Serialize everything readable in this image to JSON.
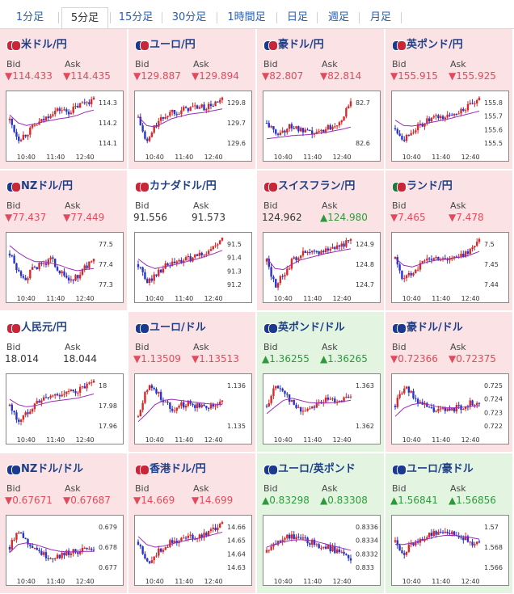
{
  "tabs": [
    {
      "label": "1分足",
      "active": false
    },
    {
      "label": "5分足",
      "active": true
    },
    {
      "label": "15分足",
      "active": false
    },
    {
      "label": "30分足",
      "active": false
    },
    {
      "label": "1時間足",
      "active": false
    },
    {
      "label": "日足",
      "active": false
    },
    {
      "label": "週足",
      "active": false
    },
    {
      "label": "月足",
      "active": false
    }
  ],
  "labels": {
    "bid": "Bid",
    "ask": "Ask"
  },
  "colors": {
    "down_bg": "#fbe3e5",
    "up_bg": "#e3f5e1",
    "down_text": "#e24a5c",
    "up_text": "#2c9a3c",
    "candle_up": "#d62a2a",
    "candle_down": "#2a34c8",
    "ma": "#9b2ab4"
  },
  "pairs": [
    {
      "name": "米ドル/円",
      "state": "down",
      "bid": "▼114.433",
      "ask": "▼114.435",
      "flags": [
        "#c9263a",
        "#c9263a"
      ],
      "yticks": [
        "114.3",
        "114.2",
        "114.1"
      ],
      "xticks": [
        "10:40",
        "11:40",
        "12:40"
      ],
      "shape": [
        0.55,
        0.2,
        0.3,
        0.45,
        0.55,
        0.7,
        0.75,
        0.7,
        0.8,
        0.9,
        0.92
      ],
      "ma": [
        0.65,
        0.5,
        0.45,
        0.48,
        0.52,
        0.55,
        0.58,
        0.6,
        0.64,
        0.7,
        0.74
      ]
    },
    {
      "name": "ユーロ/円",
      "state": "down",
      "bid": "▼129.887",
      "ask": "▼129.894",
      "flags": [
        "#1b3a8f",
        "#c9263a"
      ],
      "yticks": [
        "129.8",
        "129.7",
        "129.6"
      ],
      "xticks": [
        "10:40",
        "11:40",
        "12:40"
      ],
      "shape": [
        0.6,
        0.1,
        0.45,
        0.6,
        0.72,
        0.72,
        0.78,
        0.8,
        0.78,
        0.85,
        0.92
      ],
      "ma": [
        0.62,
        0.45,
        0.42,
        0.5,
        0.58,
        0.62,
        0.66,
        0.68,
        0.7,
        0.73,
        0.76
      ]
    },
    {
      "name": "豪ドル/円",
      "state": "down",
      "bid": "▼82.807",
      "ask": "▼82.814",
      "flags": [
        "#1b3a8f",
        "#c9263a"
      ],
      "yticks": [
        "82.7",
        "82.6"
      ],
      "xticks": [
        "10:40",
        "11:40",
        "12:40"
      ],
      "shape": [
        0.5,
        0.3,
        0.35,
        0.45,
        0.35,
        0.3,
        0.3,
        0.4,
        0.45,
        0.6,
        0.85
      ],
      "ma": [
        0.2,
        0.22,
        0.24,
        0.26,
        0.27,
        0.28,
        0.3,
        0.32,
        0.35,
        0.38,
        0.42
      ]
    },
    {
      "name": "英ポンド/円",
      "state": "down",
      "bid": "▼155.915",
      "ask": "▼155.925",
      "flags": [
        "#1b3a8f",
        "#c9263a"
      ],
      "yticks": [
        "155.8",
        "155.7",
        "155.6",
        "155.5"
      ],
      "xticks": [
        "10:40",
        "11:40",
        "12:40"
      ],
      "shape": [
        0.4,
        0.2,
        0.35,
        0.45,
        0.55,
        0.6,
        0.6,
        0.68,
        0.75,
        0.82,
        0.92
      ],
      "ma": [
        0.55,
        0.45,
        0.44,
        0.46,
        0.5,
        0.53,
        0.56,
        0.6,
        0.64,
        0.68,
        0.72
      ]
    },
    {
      "name": "NZドル/円",
      "state": "down",
      "bid": "▼77.437",
      "ask": "▼77.449",
      "flags": [
        "#1b3a8f",
        "#c9263a"
      ],
      "yticks": [
        "77.5",
        "77.4",
        "77.3"
      ],
      "xticks": [
        "10:40",
        "11:40",
        "12:40"
      ],
      "shape": [
        0.7,
        0.35,
        0.25,
        0.45,
        0.5,
        0.6,
        0.35,
        0.2,
        0.25,
        0.45,
        0.55
      ],
      "ma": [
        0.85,
        0.72,
        0.62,
        0.55,
        0.55,
        0.52,
        0.48,
        0.42,
        0.38,
        0.4,
        0.42
      ]
    },
    {
      "name": "カナダドル/円",
      "state": "flat",
      "bid": "91.556",
      "ask": "91.573",
      "flags": [
        "#c9263a",
        "#c9263a"
      ],
      "yticks": [
        "91.5",
        "91.4",
        "91.3",
        "91.2"
      ],
      "xticks": [
        "10:40",
        "11:40",
        "12:40"
      ],
      "shape": [
        0.5,
        0.15,
        0.3,
        0.45,
        0.5,
        0.55,
        0.6,
        0.65,
        0.72,
        0.82,
        0.95
      ],
      "ma": [
        0.6,
        0.48,
        0.42,
        0.45,
        0.48,
        0.52,
        0.56,
        0.6,
        0.65,
        0.7,
        0.76
      ]
    },
    {
      "name": "スイスフラン/円",
      "state": "down",
      "bid": "124.962",
      "ask": "▲124.980",
      "flags": [
        "#c9263a",
        "#c9263a"
      ],
      "yticks": [
        "124.9",
        "124.8",
        "124.7"
      ],
      "xticks": [
        "10:40",
        "11:40",
        "12:40"
      ],
      "shape": [
        0.55,
        0.1,
        0.3,
        0.55,
        0.7,
        0.7,
        0.72,
        0.78,
        0.82,
        0.88,
        0.92
      ],
      "ma": [
        0.62,
        0.42,
        0.4,
        0.5,
        0.58,
        0.62,
        0.66,
        0.7,
        0.73,
        0.76,
        0.79
      ]
    },
    {
      "name": "ランド/円",
      "state": "down",
      "bid": "▼7.465",
      "ask": "▼7.478",
      "flags": [
        "#1e7a3a",
        "#c9263a"
      ],
      "yticks": [
        "7.5",
        "7.45",
        "7.44"
      ],
      "xticks": [
        "10:40",
        "11:40",
        "12:40"
      ],
      "shape": [
        0.6,
        0.2,
        0.35,
        0.5,
        0.6,
        0.62,
        0.6,
        0.62,
        0.66,
        0.8,
        0.92
      ],
      "ma": [
        0.62,
        0.48,
        0.45,
        0.5,
        0.55,
        0.58,
        0.6,
        0.62,
        0.64,
        0.68,
        0.74
      ]
    },
    {
      "name": "人民元/円",
      "state": "flat",
      "bid": "18.014",
      "ask": "18.044",
      "flags": [
        "#c9263a",
        "#c9263a"
      ],
      "yticks": [
        "18",
        "17.98",
        "17.96"
      ],
      "xticks": [
        "10:40",
        "11:40",
        "12:40"
      ],
      "shape": [
        0.5,
        0.2,
        0.35,
        0.55,
        0.62,
        0.68,
        0.72,
        0.74,
        0.78,
        0.85,
        0.92
      ],
      "ma": [
        0.62,
        0.52,
        0.48,
        0.5,
        0.54,
        0.58,
        0.6,
        0.62,
        0.64,
        0.68,
        0.72
      ]
    },
    {
      "name": "ユーロ/ドル",
      "state": "down",
      "bid": "▼1.13509",
      "ask": "▼1.13513",
      "flags": [
        "#1b3a8f",
        "#1b3a8f"
      ],
      "yticks": [
        "1.136",
        "1.135"
      ],
      "xticks": [
        "10:40",
        "11:40",
        "12:40"
      ],
      "shape": [
        0.3,
        0.85,
        0.8,
        0.6,
        0.45,
        0.5,
        0.55,
        0.5,
        0.5,
        0.52,
        0.55
      ],
      "ma": [
        0.2,
        0.35,
        0.52,
        0.6,
        0.62,
        0.6,
        0.58,
        0.56,
        0.54,
        0.53,
        0.52
      ]
    },
    {
      "name": "英ポンド/ドル",
      "state": "up",
      "bid": "▲1.36255",
      "ask": "▲1.36265",
      "flags": [
        "#1b3a8f",
        "#1b3a8f"
      ],
      "yticks": [
        "1.363",
        "1.362"
      ],
      "xticks": [
        "10:40",
        "11:40",
        "12:40"
      ],
      "shape": [
        0.5,
        0.85,
        0.8,
        0.55,
        0.4,
        0.45,
        0.55,
        0.6,
        0.6,
        0.62,
        0.62
      ],
      "ma": [
        0.35,
        0.48,
        0.6,
        0.64,
        0.6,
        0.56,
        0.55,
        0.55,
        0.56,
        0.58,
        0.6
      ]
    },
    {
      "name": "豪ドル/ドル",
      "state": "down",
      "bid": "▼0.72366",
      "ask": "▼0.72375",
      "flags": [
        "#1b3a8f",
        "#1b3a8f"
      ],
      "yticks": [
        "0.725",
        "0.724",
        "0.723",
        "0.722"
      ],
      "xticks": [
        "10:40",
        "11:40",
        "12:40"
      ],
      "shape": [
        0.5,
        0.85,
        0.7,
        0.55,
        0.45,
        0.4,
        0.42,
        0.45,
        0.48,
        0.55,
        0.5
      ],
      "ma": [
        0.3,
        0.45,
        0.52,
        0.55,
        0.52,
        0.48,
        0.46,
        0.46,
        0.47,
        0.49,
        0.5
      ]
    },
    {
      "name": "NZドル/ドル",
      "state": "down",
      "bid": "▼0.67671",
      "ask": "▼0.67687",
      "flags": [
        "#1b3a8f",
        "#1b3a8f"
      ],
      "yticks": [
        "0.679",
        "0.678",
        "0.677"
      ],
      "xticks": [
        "10:40",
        "11:40",
        "12:40"
      ],
      "shape": [
        0.5,
        0.85,
        0.6,
        0.5,
        0.35,
        0.3,
        0.35,
        0.4,
        0.42,
        0.45,
        0.4
      ],
      "ma": [
        0.4,
        0.55,
        0.58,
        0.55,
        0.5,
        0.45,
        0.42,
        0.41,
        0.41,
        0.42,
        0.42
      ]
    },
    {
      "name": "香港ドル/円",
      "state": "down",
      "bid": "▼14.669",
      "ask": "▼14.699",
      "flags": [
        "#c9263a",
        "#c9263a"
      ],
      "yticks": [
        "14.66",
        "14.65",
        "14.64",
        "14.63"
      ],
      "xticks": [
        "10:40",
        "11:40",
        "12:40"
      ],
      "shape": [
        0.6,
        0.2,
        0.35,
        0.5,
        0.6,
        0.65,
        0.68,
        0.7,
        0.76,
        0.85,
        0.92
      ],
      "ma": [
        0.7,
        0.55,
        0.5,
        0.52,
        0.56,
        0.6,
        0.64,
        0.66,
        0.7,
        0.74,
        0.78
      ]
    },
    {
      "name": "ユーロ/英ポンド",
      "state": "up",
      "bid": "▲0.83298",
      "ask": "▲0.83308",
      "flags": [
        "#1b3a8f",
        "#1b3a8f"
      ],
      "yticks": [
        "0.8336",
        "0.8334",
        "0.8332",
        "0.833"
      ],
      "xticks": [
        "10:40",
        "11:40",
        "12:40"
      ],
      "shape": [
        0.4,
        0.55,
        0.7,
        0.7,
        0.65,
        0.6,
        0.55,
        0.5,
        0.45,
        0.4,
        0.2
      ],
      "ma": [
        0.5,
        0.55,
        0.6,
        0.63,
        0.64,
        0.63,
        0.6,
        0.56,
        0.52,
        0.48,
        0.44
      ]
    },
    {
      "name": "ユーロ/豪ドル",
      "state": "up",
      "bid": "▲1.56841",
      "ask": "▲1.56856",
      "flags": [
        "#1b3a8f",
        "#1b3a8f"
      ],
      "yticks": [
        "1.57",
        "1.568",
        "1.566"
      ],
      "xticks": [
        "10:40",
        "11:40",
        "12:40"
      ],
      "shape": [
        0.6,
        0.4,
        0.55,
        0.65,
        0.72,
        0.78,
        0.82,
        0.75,
        0.7,
        0.6,
        0.55
      ],
      "ma": [
        0.55,
        0.55,
        0.58,
        0.62,
        0.66,
        0.7,
        0.72,
        0.72,
        0.7,
        0.68,
        0.65
      ]
    }
  ]
}
